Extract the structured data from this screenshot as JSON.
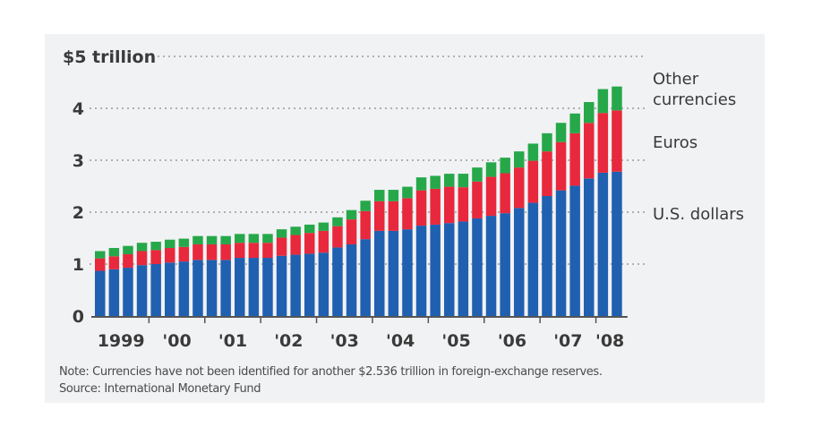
{
  "chart_data": {
    "type": "bar",
    "stacked": true,
    "title": "",
    "xlabel": "",
    "ylabel": "",
    "ylim": [
      0,
      5
    ],
    "yticks": [
      {
        "value": 0,
        "label": "0"
      },
      {
        "value": 1,
        "label": "1"
      },
      {
        "value": 2,
        "label": "2"
      },
      {
        "value": 3,
        "label": "3"
      },
      {
        "value": 4,
        "label": "4"
      },
      {
        "value": 5,
        "label": "$5 trillion"
      }
    ],
    "grid": "dotted horizontal",
    "x_year_labels": [
      "1999",
      "'00",
      "'01",
      "'02",
      "'03",
      "'04",
      "'05",
      "'06",
      "'07",
      "'08"
    ],
    "periods_per_year": 4,
    "categories": [
      "1999 Q1",
      "1999 Q2",
      "1999 Q3",
      "1999 Q4",
      "2000 Q1",
      "2000 Q2",
      "2000 Q3",
      "2000 Q4",
      "2001 Q1",
      "2001 Q2",
      "2001 Q3",
      "2001 Q4",
      "2002 Q1",
      "2002 Q2",
      "2002 Q3",
      "2002 Q4",
      "2003 Q1",
      "2003 Q2",
      "2003 Q3",
      "2003 Q4",
      "2004 Q1",
      "2004 Q2",
      "2004 Q3",
      "2004 Q4",
      "2005 Q1",
      "2005 Q2",
      "2005 Q3",
      "2005 Q4",
      "2006 Q1",
      "2006 Q2",
      "2006 Q3",
      "2006 Q4",
      "2007 Q1",
      "2007 Q2",
      "2007 Q3",
      "2007 Q4",
      "2008 Q1",
      "2008 Q2"
    ],
    "series": [
      {
        "name": "U.S. dollars",
        "color": "#2060b0",
        "values": [
          0.87,
          0.9,
          0.93,
          0.98,
          1.0,
          1.03,
          1.05,
          1.08,
          1.08,
          1.08,
          1.12,
          1.12,
          1.12,
          1.16,
          1.18,
          1.2,
          1.22,
          1.32,
          1.38,
          1.48,
          1.64,
          1.64,
          1.67,
          1.74,
          1.76,
          1.79,
          1.82,
          1.88,
          1.93,
          1.98,
          2.08,
          2.18,
          2.31,
          2.42,
          2.51,
          2.65,
          2.76,
          2.78
        ]
      },
      {
        "name": "Euros",
        "color": "#e8283c",
        "values": [
          0.24,
          0.25,
          0.26,
          0.27,
          0.27,
          0.28,
          0.28,
          0.3,
          0.3,
          0.3,
          0.29,
          0.29,
          0.29,
          0.35,
          0.38,
          0.4,
          0.42,
          0.41,
          0.48,
          0.54,
          0.57,
          0.57,
          0.6,
          0.68,
          0.69,
          0.7,
          0.66,
          0.71,
          0.75,
          0.77,
          0.78,
          0.81,
          0.86,
          0.93,
          1.01,
          1.07,
          1.15,
          1.18
        ]
      },
      {
        "name": "Other currencies",
        "color": "#26a84a",
        "values": [
          0.14,
          0.16,
          0.16,
          0.16,
          0.16,
          0.16,
          0.16,
          0.16,
          0.16,
          0.16,
          0.17,
          0.17,
          0.17,
          0.16,
          0.16,
          0.16,
          0.16,
          0.17,
          0.18,
          0.2,
          0.22,
          0.22,
          0.22,
          0.25,
          0.25,
          0.25,
          0.26,
          0.27,
          0.28,
          0.3,
          0.31,
          0.33,
          0.35,
          0.37,
          0.38,
          0.4,
          0.46,
          0.46
        ]
      }
    ],
    "legend": {
      "placement": "right",
      "entries": [
        "Other currencies",
        "Euros",
        "U.S. dollars"
      ]
    }
  },
  "legend_labels": {
    "other_line1": "Other",
    "other_line2": "currencies",
    "euros": "Euros",
    "usd": "U.S. dollars"
  },
  "notes": {
    "note": "Note: Currencies have not been identified for another $2.536 trillion in foreign-exchange reserves.",
    "source": "Source: International Monetary Fund"
  }
}
